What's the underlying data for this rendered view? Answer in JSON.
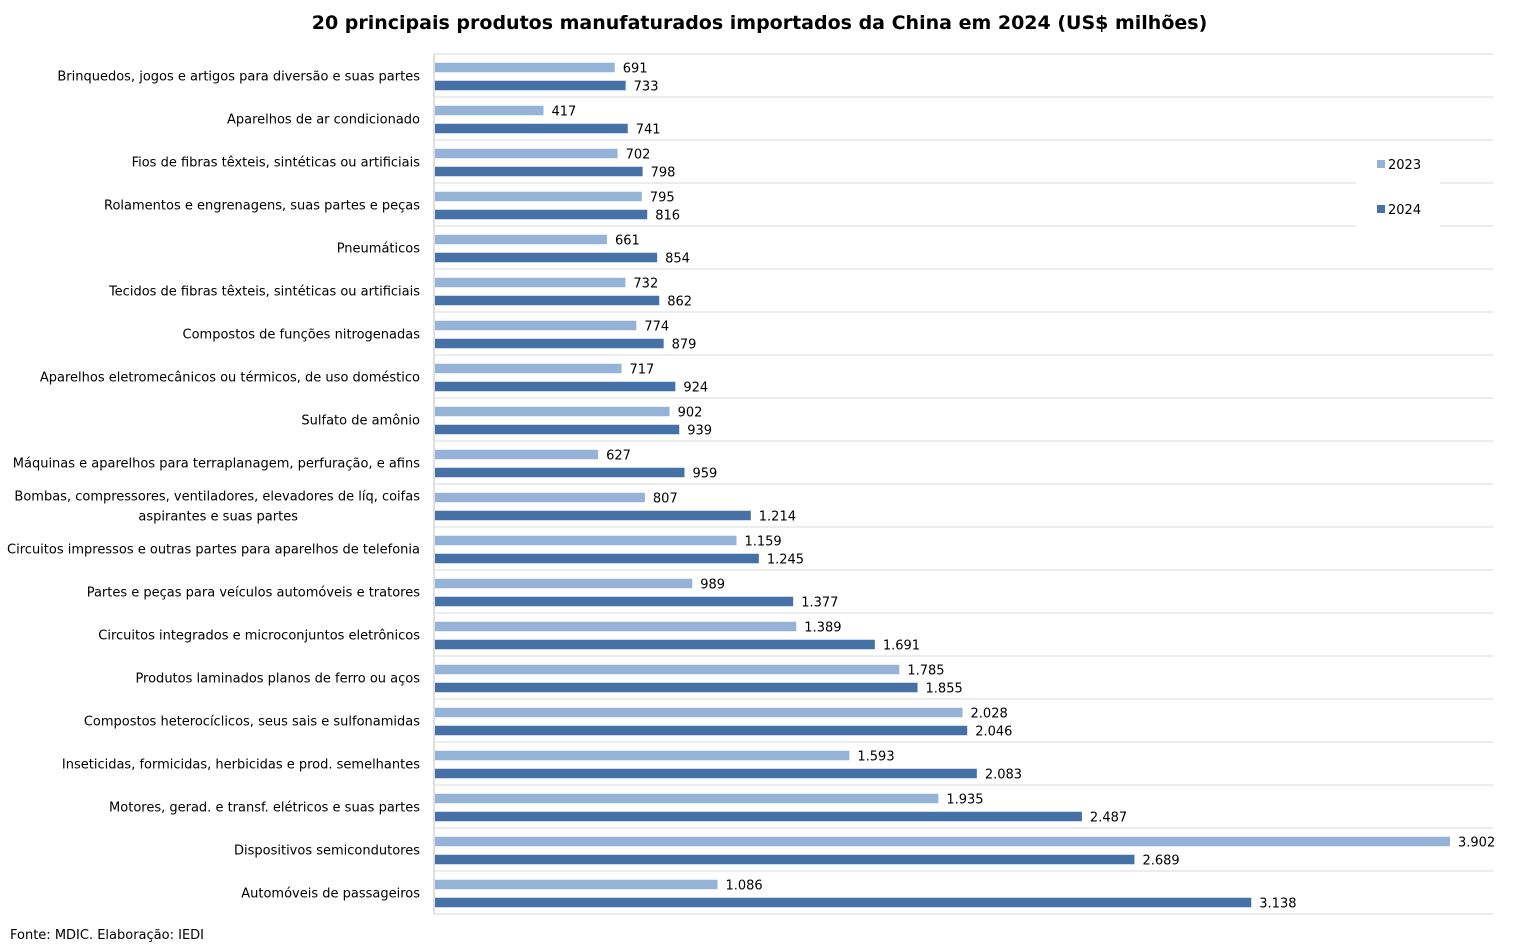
{
  "chart_data": {
    "type": "bar",
    "orientation": "horizontal",
    "title": "20 principais produtos manufaturados importados da China em 2024 (US$ milhões)",
    "categories": [
      "Brinquedos, jogos e artigos para diversão e suas partes",
      "Aparelhos de ar condicionado",
      "Fios de fibras têxteis, sintéticas ou artificiais",
      "Rolamentos e engrenagens, suas partes e peças",
      "Pneumáticos",
      "Tecidos de fibras têxteis, sintéticas ou artificiais",
      "Compostos de funções nitrogenadas",
      "Aparelhos eletromecânicos ou térmicos, de uso doméstico",
      "Sulfato de amônio",
      "Máquinas e aparelhos para terraplanagem, perfuração, e afins",
      "Bombas, compressores, ventiladores, elevadores de líq, coifas aspirantes e suas partes",
      "Circuitos impressos e outras partes para aparelhos de telefonia",
      "Partes e peças para veículos automóveis e tratores",
      "Circuitos integrados e microconjuntos eletrônicos",
      "Produtos laminados planos de ferro ou aços",
      "Compostos heterocíclicos, seus sais e sulfonamidas",
      "Inseticidas, formicidas, herbicidas e prod. semelhantes",
      "Motores, gerad. e transf. elétricos e suas partes",
      "Dispositivos semicondutores",
      "Automóveis de passageiros"
    ],
    "series": [
      {
        "name": "2023",
        "color": "#95b3d7",
        "values": [
          691,
          417,
          702,
          795,
          661,
          732,
          774,
          717,
          902,
          627,
          807,
          1159,
          989,
          1389,
          1785,
          2028,
          1593,
          1935,
          3902,
          1086
        ],
        "labels": [
          "691",
          "417",
          "702",
          "795",
          "661",
          "732",
          "774",
          "717",
          "902",
          "627",
          "807",
          "1.159",
          "989",
          "1.389",
          "1.785",
          "2.028",
          "1.593",
          "1.935",
          "3.902",
          "1.086"
        ]
      },
      {
        "name": "2024",
        "color": "#4571a6",
        "values": [
          733,
          741,
          798,
          816,
          854,
          862,
          879,
          924,
          939,
          959,
          1214,
          1245,
          1377,
          1691,
          1855,
          2046,
          2083,
          2487,
          2689,
          3138
        ],
        "labels": [
          "733",
          "741",
          "798",
          "816",
          "854",
          "862",
          "879",
          "924",
          "939",
          "959",
          "1.214",
          "1.245",
          "1.377",
          "1.691",
          "1.855",
          "2.046",
          "2.083",
          "2.487",
          "2.689",
          "3.138"
        ]
      }
    ],
    "xlim": [
      0,
      4000
    ],
    "grid": "horizontal category separators",
    "legend": "right, upper area"
  },
  "source": "Fonte: MDIC. Elaboração: IEDI"
}
